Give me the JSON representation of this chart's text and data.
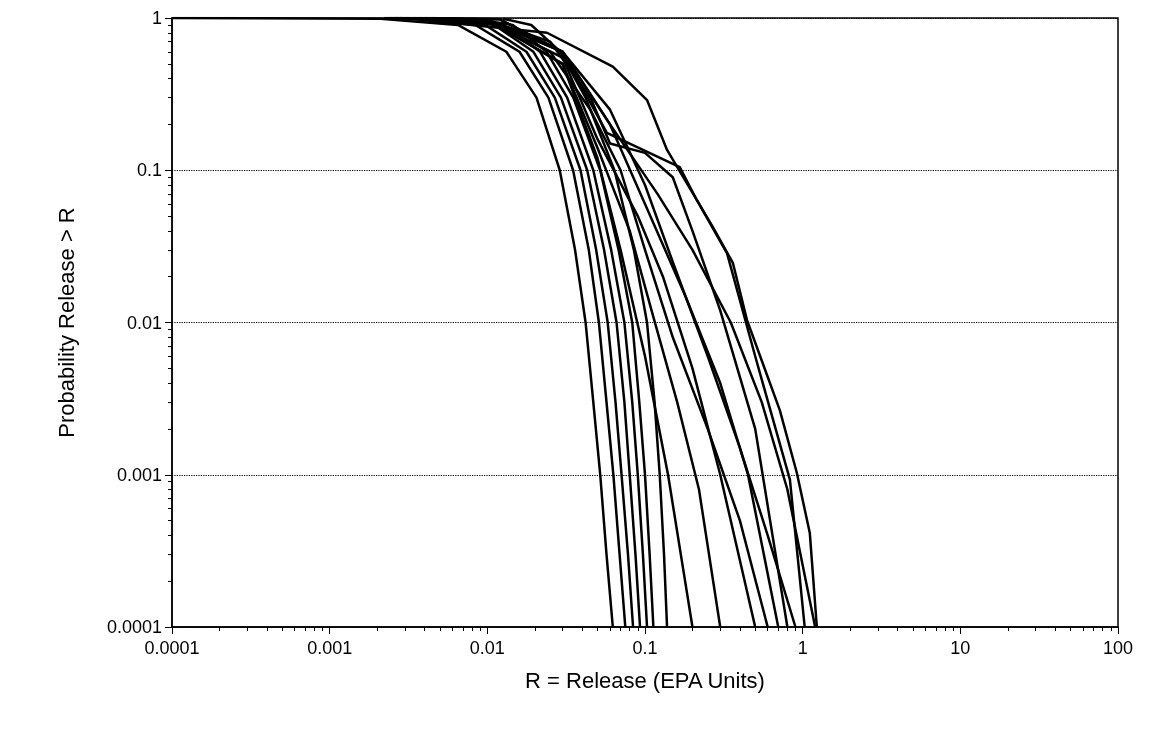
{
  "chart_data": {
    "type": "line",
    "xlabel": "R = Release (EPA Units)",
    "ylabel": "Probability Release > R",
    "log": "xy",
    "grid": "y",
    "marker": "none",
    "line_style": "solid",
    "xlim": [
      0.0001,
      100
    ],
    "ylim": [
      0.0001,
      1
    ],
    "xticks": [
      0.0001,
      0.001,
      0.01,
      0.1,
      1,
      10,
      100
    ],
    "yticks": [
      0.0001,
      0.001,
      0.01,
      0.1,
      1
    ],
    "series": [
      {
        "color": "#000000",
        "x": [
          0.0001,
          0.0021,
          0.0065,
          0.0132,
          0.0205,
          0.0288,
          0.036,
          0.042,
          0.047,
          0.052,
          0.057,
          0.0625
        ],
        "values": [
          1,
          0.99,
          0.9,
          0.6,
          0.3,
          0.1,
          0.03,
          0.01,
          0.003,
          0.001,
          0.0003,
          0.0001
        ]
      },
      {
        "color": "#000000",
        "x": [
          0.0033,
          0.0084,
          0.016,
          0.0244,
          0.035,
          0.044,
          0.051,
          0.057,
          0.063,
          0.069,
          0.075
        ],
        "values": [
          0.99,
          0.9,
          0.6,
          0.3,
          0.1,
          0.03,
          0.01,
          0.003,
          0.001,
          0.0003,
          0.0001
        ]
      },
      {
        "color": "#000000",
        "x": [
          0.0041,
          0.0097,
          0.0177,
          0.0268,
          0.039,
          0.049,
          0.058,
          0.065,
          0.071,
          0.078,
          0.084
        ],
        "values": [
          0.99,
          0.9,
          0.6,
          0.3,
          0.1,
          0.03,
          0.01,
          0.003,
          0.001,
          0.0003,
          0.0001
        ]
      },
      {
        "color": "#000000",
        "x": [
          0.0052,
          0.0111,
          0.0196,
          0.0293,
          0.043,
          0.055,
          0.066,
          0.074,
          0.08,
          0.087,
          0.093
        ],
        "values": [
          0.99,
          0.9,
          0.6,
          0.3,
          0.1,
          0.03,
          0.01,
          0.003,
          0.001,
          0.0003,
          0.0001
        ]
      },
      {
        "color": "#000000",
        "x": [
          0.0065,
          0.0127,
          0.0216,
          0.0321,
          0.047,
          0.061,
          0.074,
          0.083,
          0.09,
          0.097,
          0.103
        ],
        "values": [
          0.99,
          0.9,
          0.6,
          0.3,
          0.1,
          0.03,
          0.01,
          0.003,
          0.001,
          0.0003,
          0.0001
        ]
      },
      {
        "color": "#000000",
        "x": [
          0.0081,
          0.0145,
          0.0238,
          0.0351,
          0.052,
          0.068,
          0.083,
          0.092,
          0.1,
          0.107,
          0.113
        ],
        "values": [
          0.99,
          0.9,
          0.6,
          0.3,
          0.1,
          0.03,
          0.01,
          0.003,
          0.001,
          0.0003,
          0.0001
        ]
      },
      {
        "color": "#000000",
        "x": [
          0.0126,
          0.019,
          0.029,
          0.042,
          0.064,
          0.085,
          0.103,
          0.115,
          0.124,
          0.132,
          0.138
        ],
        "values": [
          0.99,
          0.9,
          0.6,
          0.3,
          0.1,
          0.03,
          0.01,
          0.003,
          0.001,
          0.0003,
          0.0001
        ]
      },
      {
        "color": "#000000",
        "x": [
          0.003,
          0.0239,
          0.0625,
          0.103,
          0.138,
          0.269,
          0.361,
          0.443,
          0.716,
          0.918,
          1.11,
          1.23
        ],
        "values": [
          1,
          0.8,
          0.48,
          0.289,
          0.136,
          0.0424,
          0.0246,
          0.0104,
          0.00266,
          0.00103,
          0.000414,
          0.0001
        ]
      },
      {
        "color": "#000000",
        "x": [
          0.0022,
          0.012,
          0.03,
          0.0573,
          0.166,
          0.213,
          0.331,
          0.5,
          0.83,
          1.03
        ],
        "values": [
          1,
          0.98,
          0.6,
          0.176,
          0.105,
          0.0638,
          0.0286,
          0.006,
          0.00093,
          0.0001
        ]
      },
      {
        "color": "#000000",
        "x": [
          0.0024,
          0.01,
          0.03,
          0.06,
          0.1,
          0.15,
          0.25,
          0.4,
          0.6,
          0.9
        ],
        "values": [
          1,
          0.97,
          0.6,
          0.25,
          0.08,
          0.025,
          0.006,
          0.0015,
          0.0004,
          0.0001
        ]
      },
      {
        "color": "#000000",
        "x": [
          0.0026,
          0.01,
          0.025,
          0.045,
          0.06,
          0.1,
          0.15,
          0.2,
          0.3,
          0.5,
          0.8
        ],
        "values": [
          1,
          0.97,
          0.7,
          0.3,
          0.15,
          0.13,
          0.09,
          0.04,
          0.012,
          0.002,
          0.0001
        ]
      },
      {
        "color": "#000000",
        "x": [
          0.0028,
          0.01,
          0.025,
          0.045,
          0.07,
          0.1,
          0.15,
          0.25,
          0.4,
          0.6
        ],
        "values": [
          1,
          0.97,
          0.6,
          0.25,
          0.1,
          0.03,
          0.008,
          0.002,
          0.0005,
          0.0001
        ]
      },
      {
        "color": "#000000",
        "x": [
          0.0031,
          0.01,
          0.03,
          0.05,
          0.08,
          0.11,
          0.16,
          0.22,
          0.3
        ],
        "values": [
          1,
          0.97,
          0.5,
          0.14,
          0.04,
          0.012,
          0.003,
          0.0008,
          0.0001
        ]
      },
      {
        "color": "#000000",
        "x": [
          0.0034,
          0.01,
          0.03,
          0.05,
          0.09,
          0.13,
          0.2,
          0.3,
          0.5
        ],
        "values": [
          1,
          0.97,
          0.55,
          0.16,
          0.05,
          0.02,
          0.005,
          0.001,
          0.0001
        ]
      },
      {
        "color": "#000000",
        "x": [
          0.0037,
          0.01,
          0.03,
          0.05,
          0.07,
          0.1,
          0.14,
          0.2
        ],
        "values": [
          1,
          0.97,
          0.5,
          0.12,
          0.03,
          0.006,
          0.001,
          0.0001
        ]
      },
      {
        "color": "#000000",
        "x": [
          0.004,
          0.012,
          0.03,
          0.06,
          0.12,
          0.2,
          0.35,
          0.55,
          0.8,
          1.2
        ],
        "values": [
          1,
          0.98,
          0.6,
          0.2,
          0.07,
          0.03,
          0.01,
          0.003,
          0.0008,
          0.0001
        ]
      },
      {
        "color": "#000000",
        "x": [
          0.0044,
          0.01,
          0.03,
          0.06,
          0.1,
          0.18,
          0.3,
          0.45,
          0.7
        ],
        "values": [
          1,
          0.97,
          0.6,
          0.2,
          0.06,
          0.015,
          0.004,
          0.001,
          0.0001
        ]
      }
    ]
  }
}
